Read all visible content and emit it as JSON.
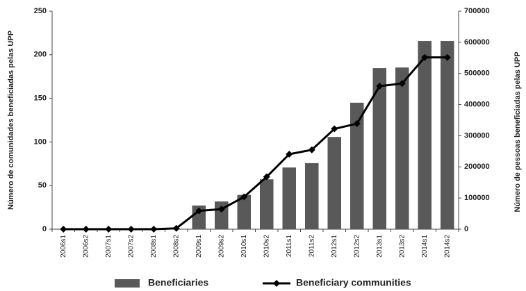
{
  "chart_data": {
    "type": "bar+line",
    "categories": [
      "2006s1",
      "2006s2",
      "2007s1",
      "2007s2",
      "2008s1",
      "2008s2",
      "2009s1",
      "2009s2",
      "2010s1",
      "2010s2",
      "2011s1",
      "2011s2",
      "2012s1",
      "2012s2",
      "2013s1",
      "2013s2",
      "2014s1",
      "2014s2"
    ],
    "series": [
      {
        "name": "Beneficiaries",
        "type": "bar",
        "axis": "y2",
        "color": "#595959",
        "values": [
          0,
          0,
          0,
          0,
          0,
          0,
          76000,
          89000,
          110000,
          160000,
          198000,
          212000,
          296000,
          406000,
          517000,
          519000,
          604000,
          604000
        ]
      },
      {
        "name": "Beneficiary communities",
        "type": "line",
        "axis": "y",
        "color": "#000000",
        "values": [
          0,
          0,
          0,
          0,
          0,
          1,
          21,
          23,
          37,
          60,
          86,
          91,
          115,
          121,
          164,
          167,
          197,
          197
        ]
      }
    ],
    "y_label": "Número de comunidades beneficiadas pelas UPP",
    "y2_label": "Número de pessoas beneficiadas pelas UPP",
    "ylim": [
      0,
      250
    ],
    "yticks": [
      0,
      50,
      100,
      150,
      200,
      250
    ],
    "y2lim": [
      0,
      700000
    ],
    "y2ticks": [
      0,
      100000,
      200000,
      300000,
      400000,
      500000,
      600000,
      700000
    ],
    "grid": false,
    "legend": "bottom"
  }
}
